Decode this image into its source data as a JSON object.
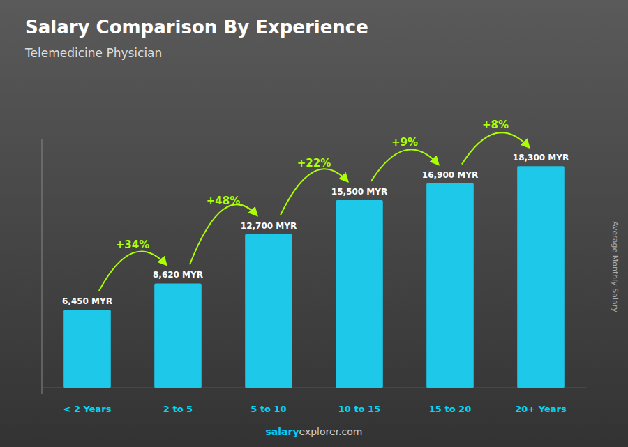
{
  "chart_data": {
    "type": "bar",
    "title": "Salary Comparison By Experience",
    "subtitle": "Telemedicine Physician",
    "y_label": "Average Monthly Salary",
    "footer": [
      "salary",
      "explorer.com"
    ],
    "categories": [
      "< 2 Years",
      "2 to 5",
      "5 to 10",
      "10 to 15",
      "15 to 20",
      "20+ Years"
    ],
    "values": [
      6450,
      8620,
      12700,
      15500,
      16900,
      18300
    ],
    "value_labels": [
      "6,450 MYR",
      "8,620 MYR",
      "12,700 MYR",
      "15,500 MYR",
      "16,900 MYR",
      "18,300 MYR"
    ],
    "data_labels": true,
    "annotations": [
      "+34%",
      "+48%",
      "+22%",
      "+9%",
      "+8%"
    ],
    "color": "#1ec8e8",
    "ylim": [
      -500,
      20500
    ],
    "tick_labels": "x",
    "grid": false
  }
}
